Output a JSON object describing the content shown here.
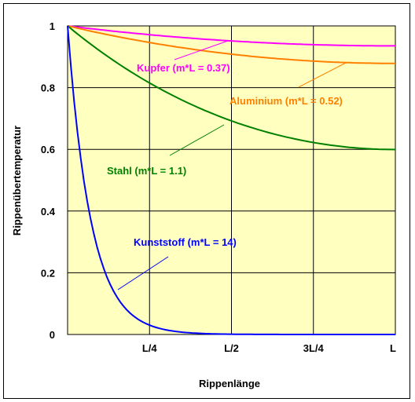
{
  "chart_data": {
    "type": "line",
    "xlabel": "Rippenlänge",
    "ylabel": "Rippenübertemperatur",
    "xlim": [
      0,
      1
    ],
    "ylim": [
      0,
      1
    ],
    "grid": true,
    "background": "#ffffc0",
    "x_ticks": [
      {
        "value": 0.25,
        "label": "L/4"
      },
      {
        "value": 0.5,
        "label": "L/2"
      },
      {
        "value": 0.75,
        "label": "3L/4"
      },
      {
        "value": 1.0,
        "label": "L"
      }
    ],
    "y_ticks": [
      {
        "value": 0,
        "label": "0"
      },
      {
        "value": 0.2,
        "label": "0.2"
      },
      {
        "value": 0.4,
        "label": "0.4"
      },
      {
        "value": 0.6,
        "label": "0.6"
      },
      {
        "value": 0.8,
        "label": "0.8"
      },
      {
        "value": 1,
        "label": "1"
      }
    ],
    "series": [
      {
        "name": "Kupfer (m*L = 0.37)",
        "color": "#ff00ff",
        "mL": 0.37,
        "x": [
          0,
          0.125,
          0.25,
          0.375,
          0.5,
          0.625,
          0.75,
          0.875,
          1.0
        ],
        "values": [
          1.0,
          0.985,
          0.972,
          0.961,
          0.952,
          0.945,
          0.94,
          0.937,
          0.936
        ]
      },
      {
        "name": "Aluminium (m*L = 0.52)",
        "color": "#ff8000",
        "mL": 0.52,
        "x": [
          0,
          0.125,
          0.25,
          0.375,
          0.5,
          0.625,
          0.75,
          0.875,
          1.0
        ],
        "values": [
          1.0,
          0.971,
          0.945,
          0.923,
          0.905,
          0.891,
          0.881,
          0.875,
          0.874
        ]
      },
      {
        "name": "Stahl (m*L = 1.1)",
        "color": "#008000",
        "mL": 1.1,
        "x": [
          0,
          0.125,
          0.25,
          0.375,
          0.5,
          0.625,
          0.75,
          0.875,
          1.0
        ],
        "values": [
          1.0,
          0.888,
          0.795,
          0.717,
          0.653,
          0.603,
          0.566,
          0.542,
          0.535
        ]
      },
      {
        "name": "Kunststoff (m*L = 14)",
        "color": "#0000ff",
        "mL": 14,
        "x": [
          0,
          0.05,
          0.1,
          0.15,
          0.2,
          0.25,
          0.3,
          0.35,
          0.4,
          0.5,
          0.6,
          0.75,
          1.0
        ],
        "values": [
          1.0,
          0.497,
          0.247,
          0.122,
          0.061,
          0.03,
          0.015,
          0.007,
          0.004,
          0.001,
          0.0,
          0.0,
          0.0
        ]
      }
    ],
    "annotations": [
      {
        "text": "Kupfer (m*L = 0.37)",
        "color": "#ff00ff"
      },
      {
        "text": "Aluminium (m*L = 0.52)",
        "color": "#ff8000"
      },
      {
        "text": "Stahl (m*L = 1.1)",
        "color": "#008000"
      },
      {
        "text": "Kunststoff (m*L = 14)",
        "color": "#0000ff"
      }
    ]
  }
}
